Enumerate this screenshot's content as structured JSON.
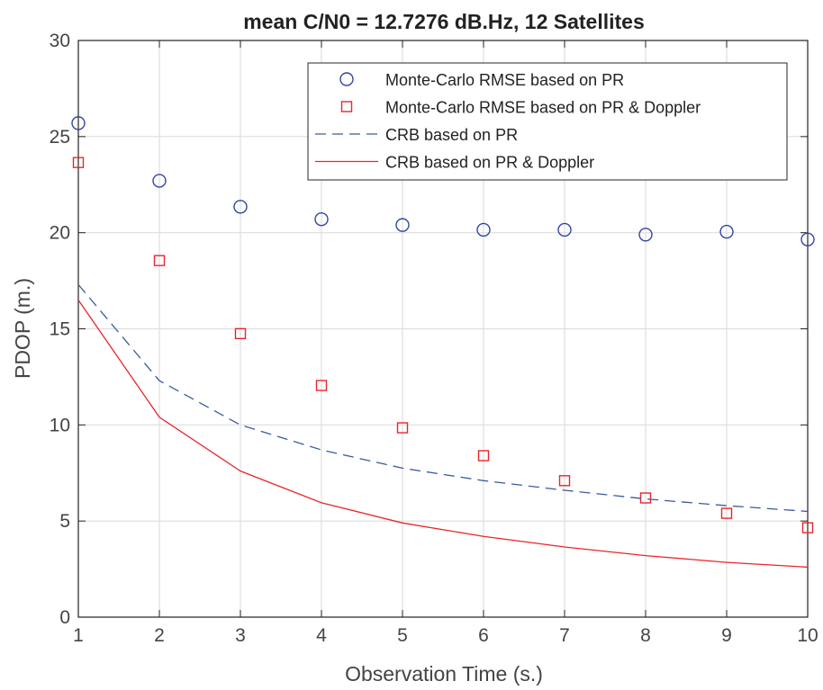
{
  "chart_data": {
    "type": "line",
    "title": "mean C/N0 = 12.7276 dB.Hz, 12 Satellites",
    "xlabel": "Observation Time (s.)",
    "ylabel": "PDOP (m.)",
    "xlim": [
      1,
      10
    ],
    "ylim": [
      0,
      30
    ],
    "xticks": [
      1,
      2,
      3,
      4,
      5,
      6,
      7,
      8,
      9,
      10
    ],
    "yticks": [
      0,
      5,
      10,
      15,
      20,
      25,
      30
    ],
    "grid": true,
    "legend_position": "top-right",
    "x": [
      1,
      2,
      3,
      4,
      5,
      6,
      7,
      8,
      9,
      10
    ],
    "series": [
      {
        "name": "Monte-Carlo RMSE based on PR",
        "style": "circle-markers",
        "color": "#3246a0",
        "values": [
          25.7,
          22.7,
          21.35,
          20.7,
          20.4,
          20.15,
          20.15,
          19.9,
          20.05,
          19.65
        ]
      },
      {
        "name": "Monte-Carlo RMSE based on PR & Doppler",
        "style": "square-markers",
        "color": "#e8262b",
        "values": [
          23.65,
          18.55,
          14.75,
          12.05,
          9.85,
          8.4,
          7.1,
          6.2,
          5.4,
          4.65
        ]
      },
      {
        "name": "CRB based on PR",
        "style": "dashed-line",
        "color": "#3c5aa0",
        "values": [
          17.3,
          12.3,
          10.0,
          8.7,
          7.75,
          7.1,
          6.6,
          6.15,
          5.8,
          5.5
        ]
      },
      {
        "name": "CRB based on PR & Doppler",
        "style": "solid-line",
        "color": "#e8262b",
        "values": [
          16.5,
          10.4,
          7.6,
          5.95,
          4.9,
          4.2,
          3.65,
          3.2,
          2.85,
          2.6
        ]
      }
    ]
  }
}
